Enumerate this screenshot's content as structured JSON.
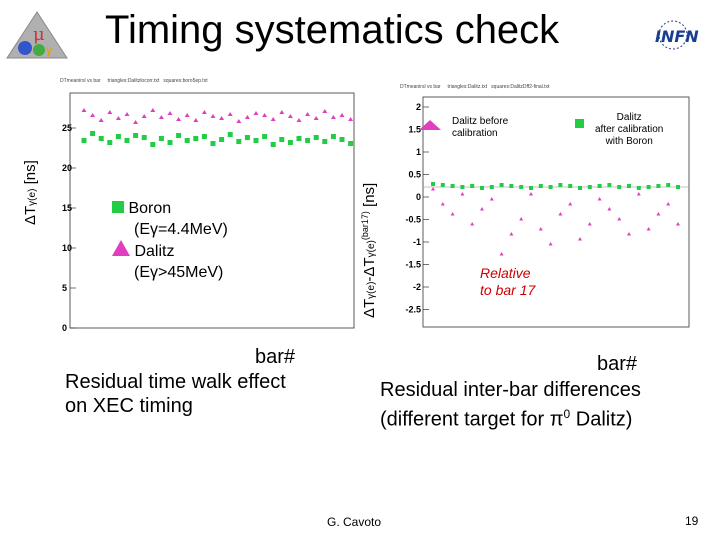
{
  "slide": {
    "title": "Timing systematics check",
    "author": "G. Cavoto",
    "page_number": "19"
  },
  "left_panel": {
    "header_left": "DTmeanirsl vs bar",
    "header_mid": "triangles:Dalitzlocorr.txt",
    "header_right": "squares:boro5ep.txt",
    "ylabel_main": "ΔT",
    "ylabel_sub": "γ(e)",
    "ylabel_unit": "[ns]",
    "yticks": [
      "0",
      "5",
      "10",
      "15",
      "20",
      "25"
    ],
    "legend_boron_line1": "Boron",
    "legend_boron_line2": "(Eγ=4.4MeV)",
    "legend_dalitz_line1": "Dalitz",
    "legend_dalitz_line2": "(Eγ>45MeV)",
    "xlabel": "bar#",
    "caption_line1": "Residual time walk effect",
    "caption_line2": "on XEC timing",
    "colors": {
      "boron": "#22cc44",
      "dalitz": "#e040c0"
    }
  },
  "right_panel": {
    "header_left": "DTmeanirsl vs bar",
    "header_mid": "triangles:Dalitz.txt",
    "header_right": "squares:DalitzDff2-final.txt",
    "ylabel_main": "ΔT",
    "ylabel_sub1": "γ(e)",
    "ylabel_mid": "-ΔT",
    "ylabel_sub2": "γ(e)",
    "ylabel_sup": "(bar17)",
    "ylabel_unit": "[ns]",
    "yticks": [
      "2",
      "1.5",
      "1",
      "0.5",
      "0",
      "-0.5",
      "-1",
      "-1.5",
      "-2",
      "-2.5"
    ],
    "legend_before": "Dalitz before calibration",
    "legend_after_line1": "Dalitz",
    "legend_after_line2": "after calibration",
    "legend_after_line3": "with Boron",
    "annotation_line1": "Relative",
    "annotation_line2": "to bar 17",
    "annotation_color": "#cc0000",
    "xlabel": "bar#",
    "caption_line1": "Residual inter-bar differences",
    "caption_line2": "(different target for π",
    "caption_sup": "0",
    "caption_line2_end": " Dalitz)"
  }
}
